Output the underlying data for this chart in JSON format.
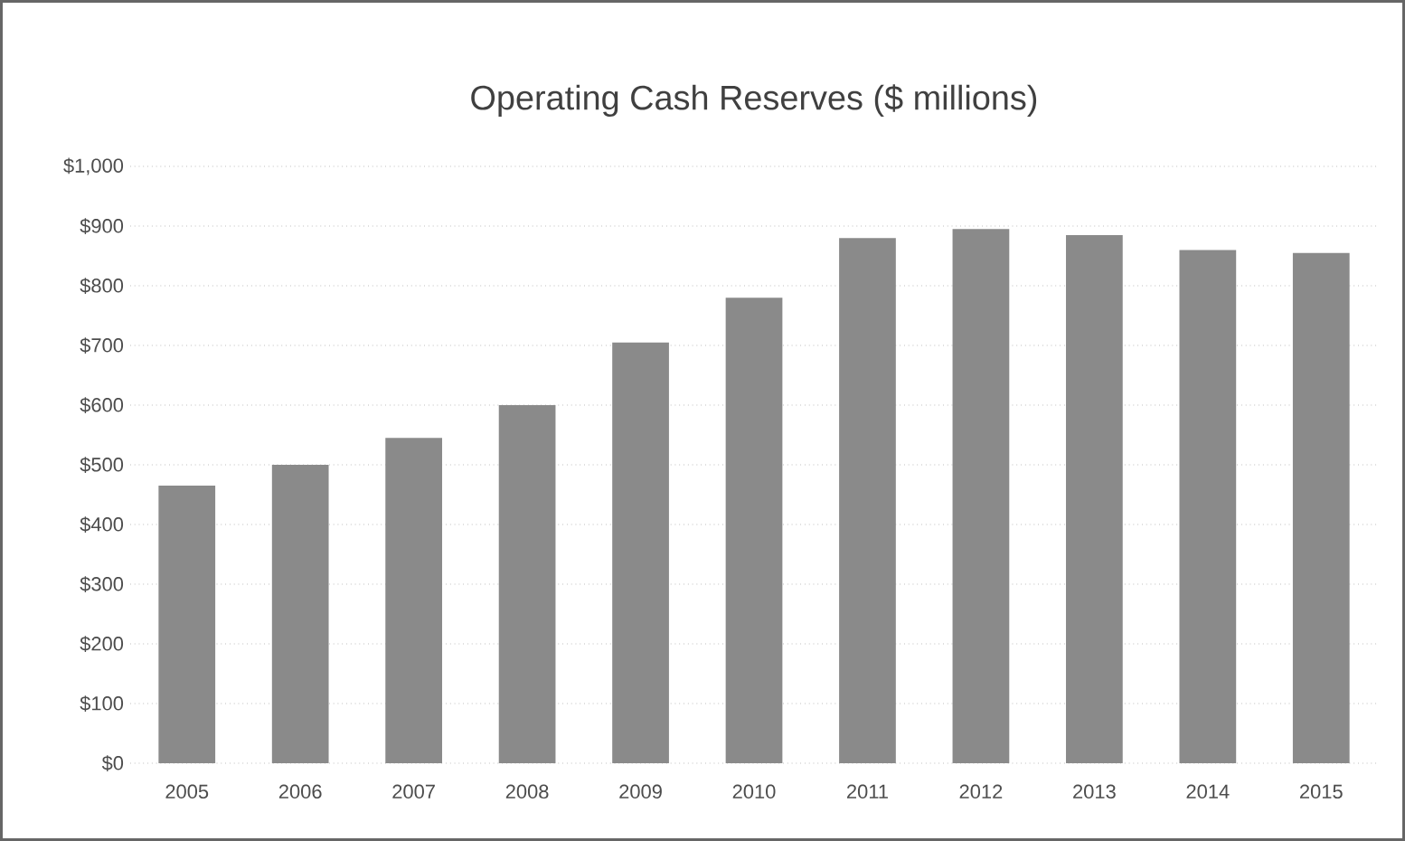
{
  "chart_data": {
    "type": "bar",
    "title": "Operating Cash Reserves ($ millions)",
    "categories": [
      "2005",
      "2006",
      "2007",
      "2008",
      "2009",
      "2010",
      "2011",
      "2012",
      "2013",
      "2014",
      "2015"
    ],
    "values": [
      465,
      500,
      545,
      600,
      705,
      780,
      880,
      895,
      885,
      860,
      855
    ],
    "color": "#8a8a8a",
    "ylim": [
      0,
      1000
    ],
    "yticks": [
      {
        "value": 0,
        "label": "$0"
      },
      {
        "value": 100,
        "label": "$100"
      },
      {
        "value": 200,
        "label": "$200"
      },
      {
        "value": 300,
        "label": "$300"
      },
      {
        "value": 400,
        "label": "$400"
      },
      {
        "value": 500,
        "label": "$500"
      },
      {
        "value": 600,
        "label": "$600"
      },
      {
        "value": 700,
        "label": "$700"
      },
      {
        "value": 800,
        "label": "$800"
      },
      {
        "value": 900,
        "label": "$900"
      },
      {
        "value": 1000,
        "label": "$1,000"
      }
    ],
    "grid": "y"
  }
}
